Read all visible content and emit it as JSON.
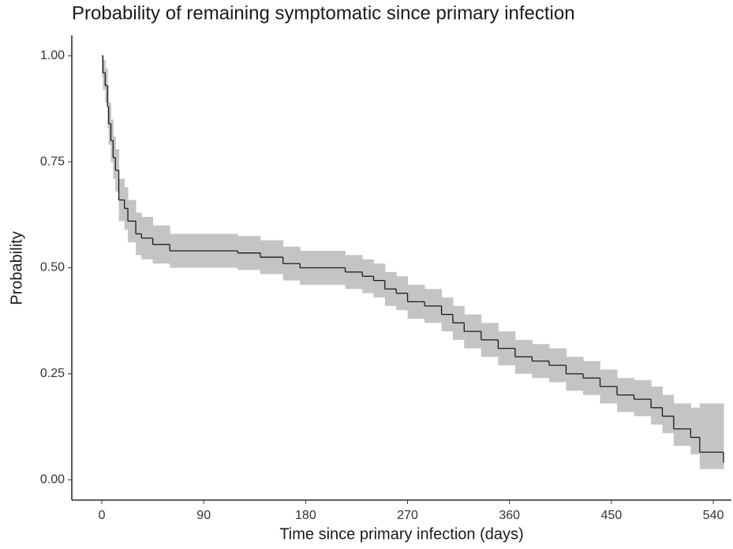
{
  "chart_data": {
    "type": "line",
    "step": true,
    "title": "Probability of remaining symptomatic since primary infection",
    "x_label": "Time since primary infection (days)",
    "y_label": "Probability",
    "color": "#1a1a1a",
    "band_color": "#c4c4c4",
    "x": [
      0,
      1,
      3,
      5,
      6,
      8,
      10,
      12,
      15,
      20,
      23,
      30,
      35,
      45,
      60,
      100,
      120,
      140,
      160,
      175,
      200,
      215,
      230,
      240,
      250,
      260,
      270,
      285,
      300,
      310,
      320,
      335,
      350,
      365,
      380,
      395,
      410,
      425,
      440,
      455,
      470,
      485,
      495,
      505,
      520,
      528,
      549
    ],
    "values": [
      1.0,
      0.96,
      0.93,
      0.88,
      0.84,
      0.8,
      0.76,
      0.73,
      0.66,
      0.64,
      0.61,
      0.58,
      0.57,
      0.555,
      0.54,
      0.54,
      0.535,
      0.525,
      0.51,
      0.5,
      0.5,
      0.49,
      0.48,
      0.47,
      0.45,
      0.44,
      0.42,
      0.41,
      0.39,
      0.37,
      0.35,
      0.33,
      0.31,
      0.29,
      0.28,
      0.27,
      0.25,
      0.24,
      0.22,
      0.2,
      0.19,
      0.17,
      0.15,
      0.12,
      0.1,
      0.065,
      0.04
    ],
    "lower": [
      0.95,
      0.92,
      0.89,
      0.83,
      0.79,
      0.75,
      0.71,
      0.68,
      0.61,
      0.59,
      0.56,
      0.53,
      0.52,
      0.51,
      0.5,
      0.5,
      0.495,
      0.485,
      0.47,
      0.46,
      0.46,
      0.45,
      0.44,
      0.43,
      0.41,
      0.4,
      0.38,
      0.37,
      0.35,
      0.33,
      0.31,
      0.29,
      0.27,
      0.25,
      0.24,
      0.23,
      0.21,
      0.2,
      0.18,
      0.16,
      0.15,
      0.13,
      0.11,
      0.08,
      0.06,
      0.025,
      0.025
    ],
    "upper": [
      1.0,
      0.99,
      0.97,
      0.93,
      0.89,
      0.85,
      0.81,
      0.78,
      0.71,
      0.69,
      0.66,
      0.63,
      0.62,
      0.6,
      0.58,
      0.58,
      0.575,
      0.565,
      0.55,
      0.54,
      0.54,
      0.53,
      0.52,
      0.51,
      0.49,
      0.48,
      0.46,
      0.45,
      0.43,
      0.41,
      0.39,
      0.37,
      0.35,
      0.33,
      0.32,
      0.31,
      0.29,
      0.28,
      0.26,
      0.24,
      0.235,
      0.22,
      0.2,
      0.18,
      0.17,
      0.18,
      0.18
    ],
    "xlim": [
      -26.5,
      556
    ],
    "ylim": [
      -0.048,
      1.048
    ],
    "xticks": [
      0,
      90,
      180,
      270,
      360,
      450,
      540
    ],
    "yticks": [
      {
        "value": 0,
        "label": "0.00"
      },
      {
        "value": 0.25,
        "label": "0.25"
      },
      {
        "value": 0.5,
        "label": "0.50"
      },
      {
        "value": 0.75,
        "label": "0.75"
      },
      {
        "value": 1,
        "label": "1.00"
      }
    ]
  }
}
